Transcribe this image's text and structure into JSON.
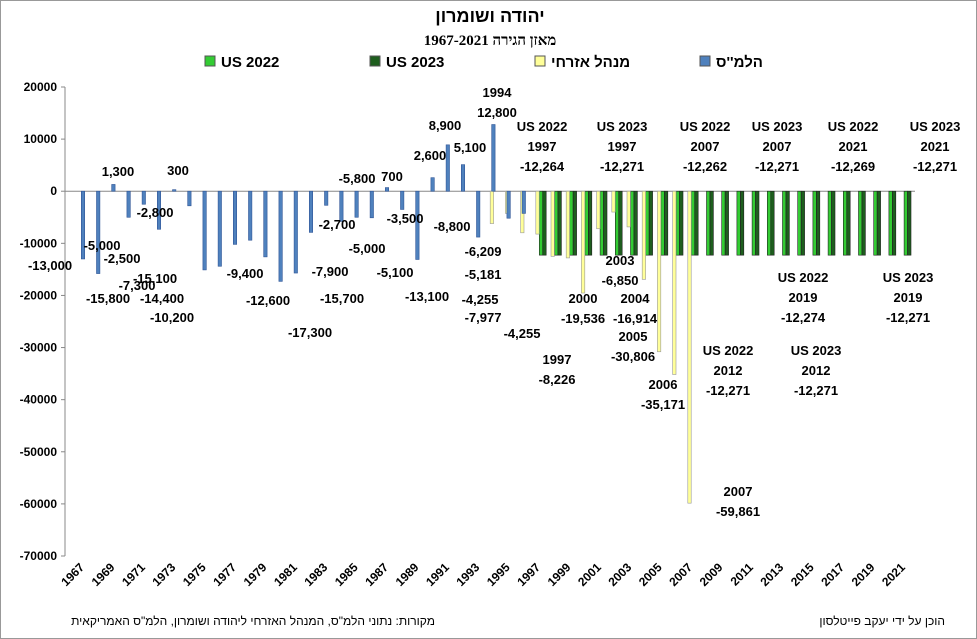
{
  "chart_data": {
    "type": "bar",
    "title": "יהודה ושומרון",
    "subtitle": "מאזן הגירה 1967-2021",
    "categories": [
      1967,
      null,
      1969,
      null,
      1971,
      null,
      1973,
      null,
      1975,
      null,
      1977,
      null,
      1979,
      null,
      1981,
      null,
      1983,
      null,
      1985,
      null,
      1987,
      null,
      1989,
      null,
      1991,
      null,
      1993,
      null,
      1995,
      null,
      1997,
      null,
      1999,
      null,
      2001,
      null,
      2003,
      null,
      2005,
      null,
      2007,
      null,
      2009,
      null,
      2011,
      null,
      2013,
      null,
      2015,
      null,
      2017,
      null,
      2019,
      null,
      2021
    ],
    "ylim": [
      -70000,
      20000
    ],
    "yticks": [
      -70000,
      -60000,
      -50000,
      -40000,
      -30000,
      -20000,
      -10000,
      0,
      10000,
      20000
    ],
    "grid": false,
    "legend": "top",
    "series": [
      {
        "name": "US 2022",
        "color": "#33cc33",
        "values": [
          null,
          null,
          null,
          null,
          null,
          null,
          null,
          null,
          null,
          null,
          null,
          null,
          null,
          null,
          null,
          null,
          null,
          null,
          null,
          null,
          null,
          null,
          null,
          null,
          null,
          null,
          null,
          null,
          null,
          null,
          -12264,
          -12270,
          -12270,
          -12270,
          -12270,
          -12270,
          -12270,
          -12270,
          -12270,
          -12270,
          -12262,
          -12270,
          -12270,
          -12270,
          -12270,
          -12271,
          -12270,
          -12270,
          -12270,
          -12270,
          -12270,
          -12270,
          -12274,
          -12270,
          -12269
        ],
        "value_labels": [
          null,
          null,
          null,
          null,
          null,
          null,
          null,
          null,
          null,
          null,
          null,
          null,
          null,
          null,
          null,
          null,
          null,
          null,
          null,
          null,
          null,
          null,
          null,
          null,
          null,
          null,
          null,
          null,
          null,
          null,
          "-12,264",
          null,
          null,
          null,
          null,
          null,
          null,
          null,
          null,
          null,
          "-12,262",
          null,
          null,
          null,
          null,
          "-12,271",
          null,
          null,
          null,
          null,
          null,
          null,
          "-12,274",
          null,
          "-12,269"
        ],
        "label_titles": [
          null,
          null,
          null,
          null,
          null,
          null,
          null,
          null,
          null,
          null,
          null,
          null,
          null,
          null,
          null,
          null,
          null,
          null,
          null,
          null,
          null,
          null,
          null,
          null,
          null,
          null,
          null,
          null,
          null,
          null,
          [
            "US 2022",
            "1997"
          ],
          null,
          null,
          null,
          null,
          null,
          null,
          null,
          null,
          null,
          [
            "US 2022",
            "2007"
          ],
          null,
          null,
          null,
          null,
          [
            "US 2022",
            "2012"
          ],
          null,
          null,
          null,
          null,
          null,
          null,
          [
            "US 2022",
            "2019"
          ],
          null,
          [
            "US 2022",
            "2021"
          ]
        ]
      },
      {
        "name": "US 2023",
        "color": "#1e5e1e",
        "values": [
          null,
          null,
          null,
          null,
          null,
          null,
          null,
          null,
          null,
          null,
          null,
          null,
          null,
          null,
          null,
          null,
          null,
          null,
          null,
          null,
          null,
          null,
          null,
          null,
          null,
          null,
          null,
          null,
          null,
          null,
          -12271,
          -12271,
          -12271,
          -12271,
          -12271,
          -12271,
          -12271,
          -12271,
          -12271,
          -12271,
          -12271,
          -12271,
          -12271,
          -12271,
          -12271,
          -12271,
          -12271,
          -12271,
          -12271,
          -12271,
          -12271,
          -12271,
          -12271,
          -12271,
          -12271
        ],
        "value_labels": [
          null,
          null,
          null,
          null,
          null,
          null,
          null,
          null,
          null,
          null,
          null,
          null,
          null,
          null,
          null,
          null,
          null,
          null,
          null,
          null,
          null,
          null,
          null,
          null,
          null,
          null,
          null,
          null,
          null,
          null,
          "-12,271",
          null,
          null,
          null,
          null,
          null,
          null,
          null,
          null,
          null,
          "-12,271",
          null,
          null,
          null,
          null,
          "-12,271",
          null,
          null,
          null,
          null,
          null,
          null,
          "-12,271",
          null,
          "-12,271"
        ],
        "label_titles": [
          null,
          null,
          null,
          null,
          null,
          null,
          null,
          null,
          null,
          null,
          null,
          null,
          null,
          null,
          null,
          null,
          null,
          null,
          null,
          null,
          null,
          null,
          null,
          null,
          null,
          null,
          null,
          null,
          null,
          null,
          [
            "US 2023",
            "1997"
          ],
          null,
          null,
          null,
          null,
          null,
          null,
          null,
          null,
          null,
          [
            "US 2023",
            "2007"
          ],
          null,
          null,
          null,
          null,
          [
            "US 2023",
            "2012"
          ],
          null,
          null,
          null,
          null,
          null,
          null,
          [
            "US 2023",
            "2019"
          ],
          null,
          [
            "US 2023",
            "2021"
          ]
        ]
      },
      {
        "name": "מנהל אזרחי",
        "color": "#ffff99",
        "values": [
          null,
          null,
          null,
          null,
          null,
          null,
          null,
          null,
          null,
          null,
          null,
          null,
          null,
          null,
          null,
          null,
          null,
          null,
          null,
          null,
          null,
          null,
          null,
          null,
          null,
          null,
          null,
          -6209,
          -4255,
          -7977,
          -8226,
          -12500,
          -12800,
          -19536,
          -7200,
          -4000,
          -6850,
          -16914,
          -30806,
          -35171,
          -59861,
          null,
          null,
          null,
          null,
          null,
          null,
          null,
          null,
          null,
          null,
          null,
          null,
          null,
          null
        ],
        "value_labels": [
          null,
          null,
          null,
          null,
          null,
          null,
          null,
          null,
          null,
          null,
          null,
          null,
          null,
          null,
          null,
          null,
          null,
          null,
          null,
          null,
          null,
          null,
          null,
          null,
          null,
          null,
          null,
          "-6,209",
          "-4,255",
          "-7,977",
          "-8,226",
          null,
          null,
          "-19,536",
          null,
          null,
          "-6,850",
          "-16,914",
          "-30,806",
          "-35,171",
          "-59,861",
          null,
          null,
          null,
          null,
          null,
          null,
          null,
          null,
          null,
          null,
          null,
          null,
          null,
          null
        ],
        "label_titles": [
          null,
          null,
          null,
          null,
          null,
          null,
          null,
          null,
          null,
          null,
          null,
          null,
          null,
          null,
          null,
          null,
          null,
          null,
          null,
          null,
          null,
          null,
          null,
          null,
          null,
          null,
          null,
          null,
          null,
          null,
          [
            "1997"
          ],
          null,
          null,
          [
            "2000"
          ],
          null,
          null,
          [
            "2003"
          ],
          [
            "2004"
          ],
          [
            "2005"
          ],
          [
            "2006"
          ],
          [
            "2007"
          ],
          null,
          null,
          null,
          null,
          null,
          null,
          null,
          null,
          null,
          null,
          null,
          null,
          null,
          null
        ]
      },
      {
        "name": "הלמ''ס",
        "color": "#4f81bd",
        "values": [
          -13000,
          -15800,
          1300,
          -5000,
          -2500,
          -7300,
          300,
          -2800,
          -15100,
          -14400,
          -10200,
          -9400,
          -12600,
          -17300,
          -15700,
          -7900,
          -2700,
          -5800,
          -5000,
          -5100,
          700,
          -3500,
          -13100,
          2600,
          8900,
          5100,
          -8800,
          12800,
          -5181,
          -4255,
          null,
          null,
          null,
          null,
          null,
          null,
          null,
          null,
          null,
          null,
          null,
          null,
          null,
          null,
          null,
          null,
          null,
          null,
          null,
          null,
          null,
          null,
          null,
          null,
          null
        ],
        "value_labels": [
          "-13,000",
          "-15,800",
          "1,300",
          "-5,000",
          "-2,500",
          "-7,300",
          "300",
          "-2,800",
          "-15,100",
          "-14,400",
          "-10,200",
          "-9,400",
          "-12,600",
          "-17,300",
          "-15,700",
          "-7,900",
          "-2,700",
          "-5,800",
          "-5,000",
          "-5,100",
          "700",
          "-3,500",
          "-13,100",
          "2,600",
          "8,900",
          "5,100",
          "-8,800",
          "12,800",
          "-5,181",
          "-4,255",
          null,
          null,
          null,
          null,
          null,
          null,
          null,
          null,
          null,
          null,
          null,
          null,
          null,
          null,
          null,
          null,
          null,
          null,
          null,
          null,
          null,
          null,
          null,
          null,
          null
        ],
        "label_titles": [
          null,
          null,
          null,
          null,
          null,
          null,
          null,
          null,
          null,
          null,
          null,
          null,
          null,
          null,
          null,
          null,
          null,
          null,
          null,
          null,
          null,
          null,
          null,
          null,
          null,
          null,
          null,
          [
            "1994"
          ],
          null,
          null,
          null,
          null,
          null,
          null,
          null,
          null,
          null,
          null,
          null,
          null,
          null,
          null,
          null,
          null,
          null,
          null,
          null,
          null,
          null,
          null,
          null,
          null,
          null,
          null,
          null
        ]
      }
    ],
    "source": "מקורות: נתוני הלמ\"ס, המנהל האזרחי ליהודה ושומרון, הלמ\"ס האמריקאית",
    "credit": "הוכן על ידי יעקב פייטלסון"
  }
}
